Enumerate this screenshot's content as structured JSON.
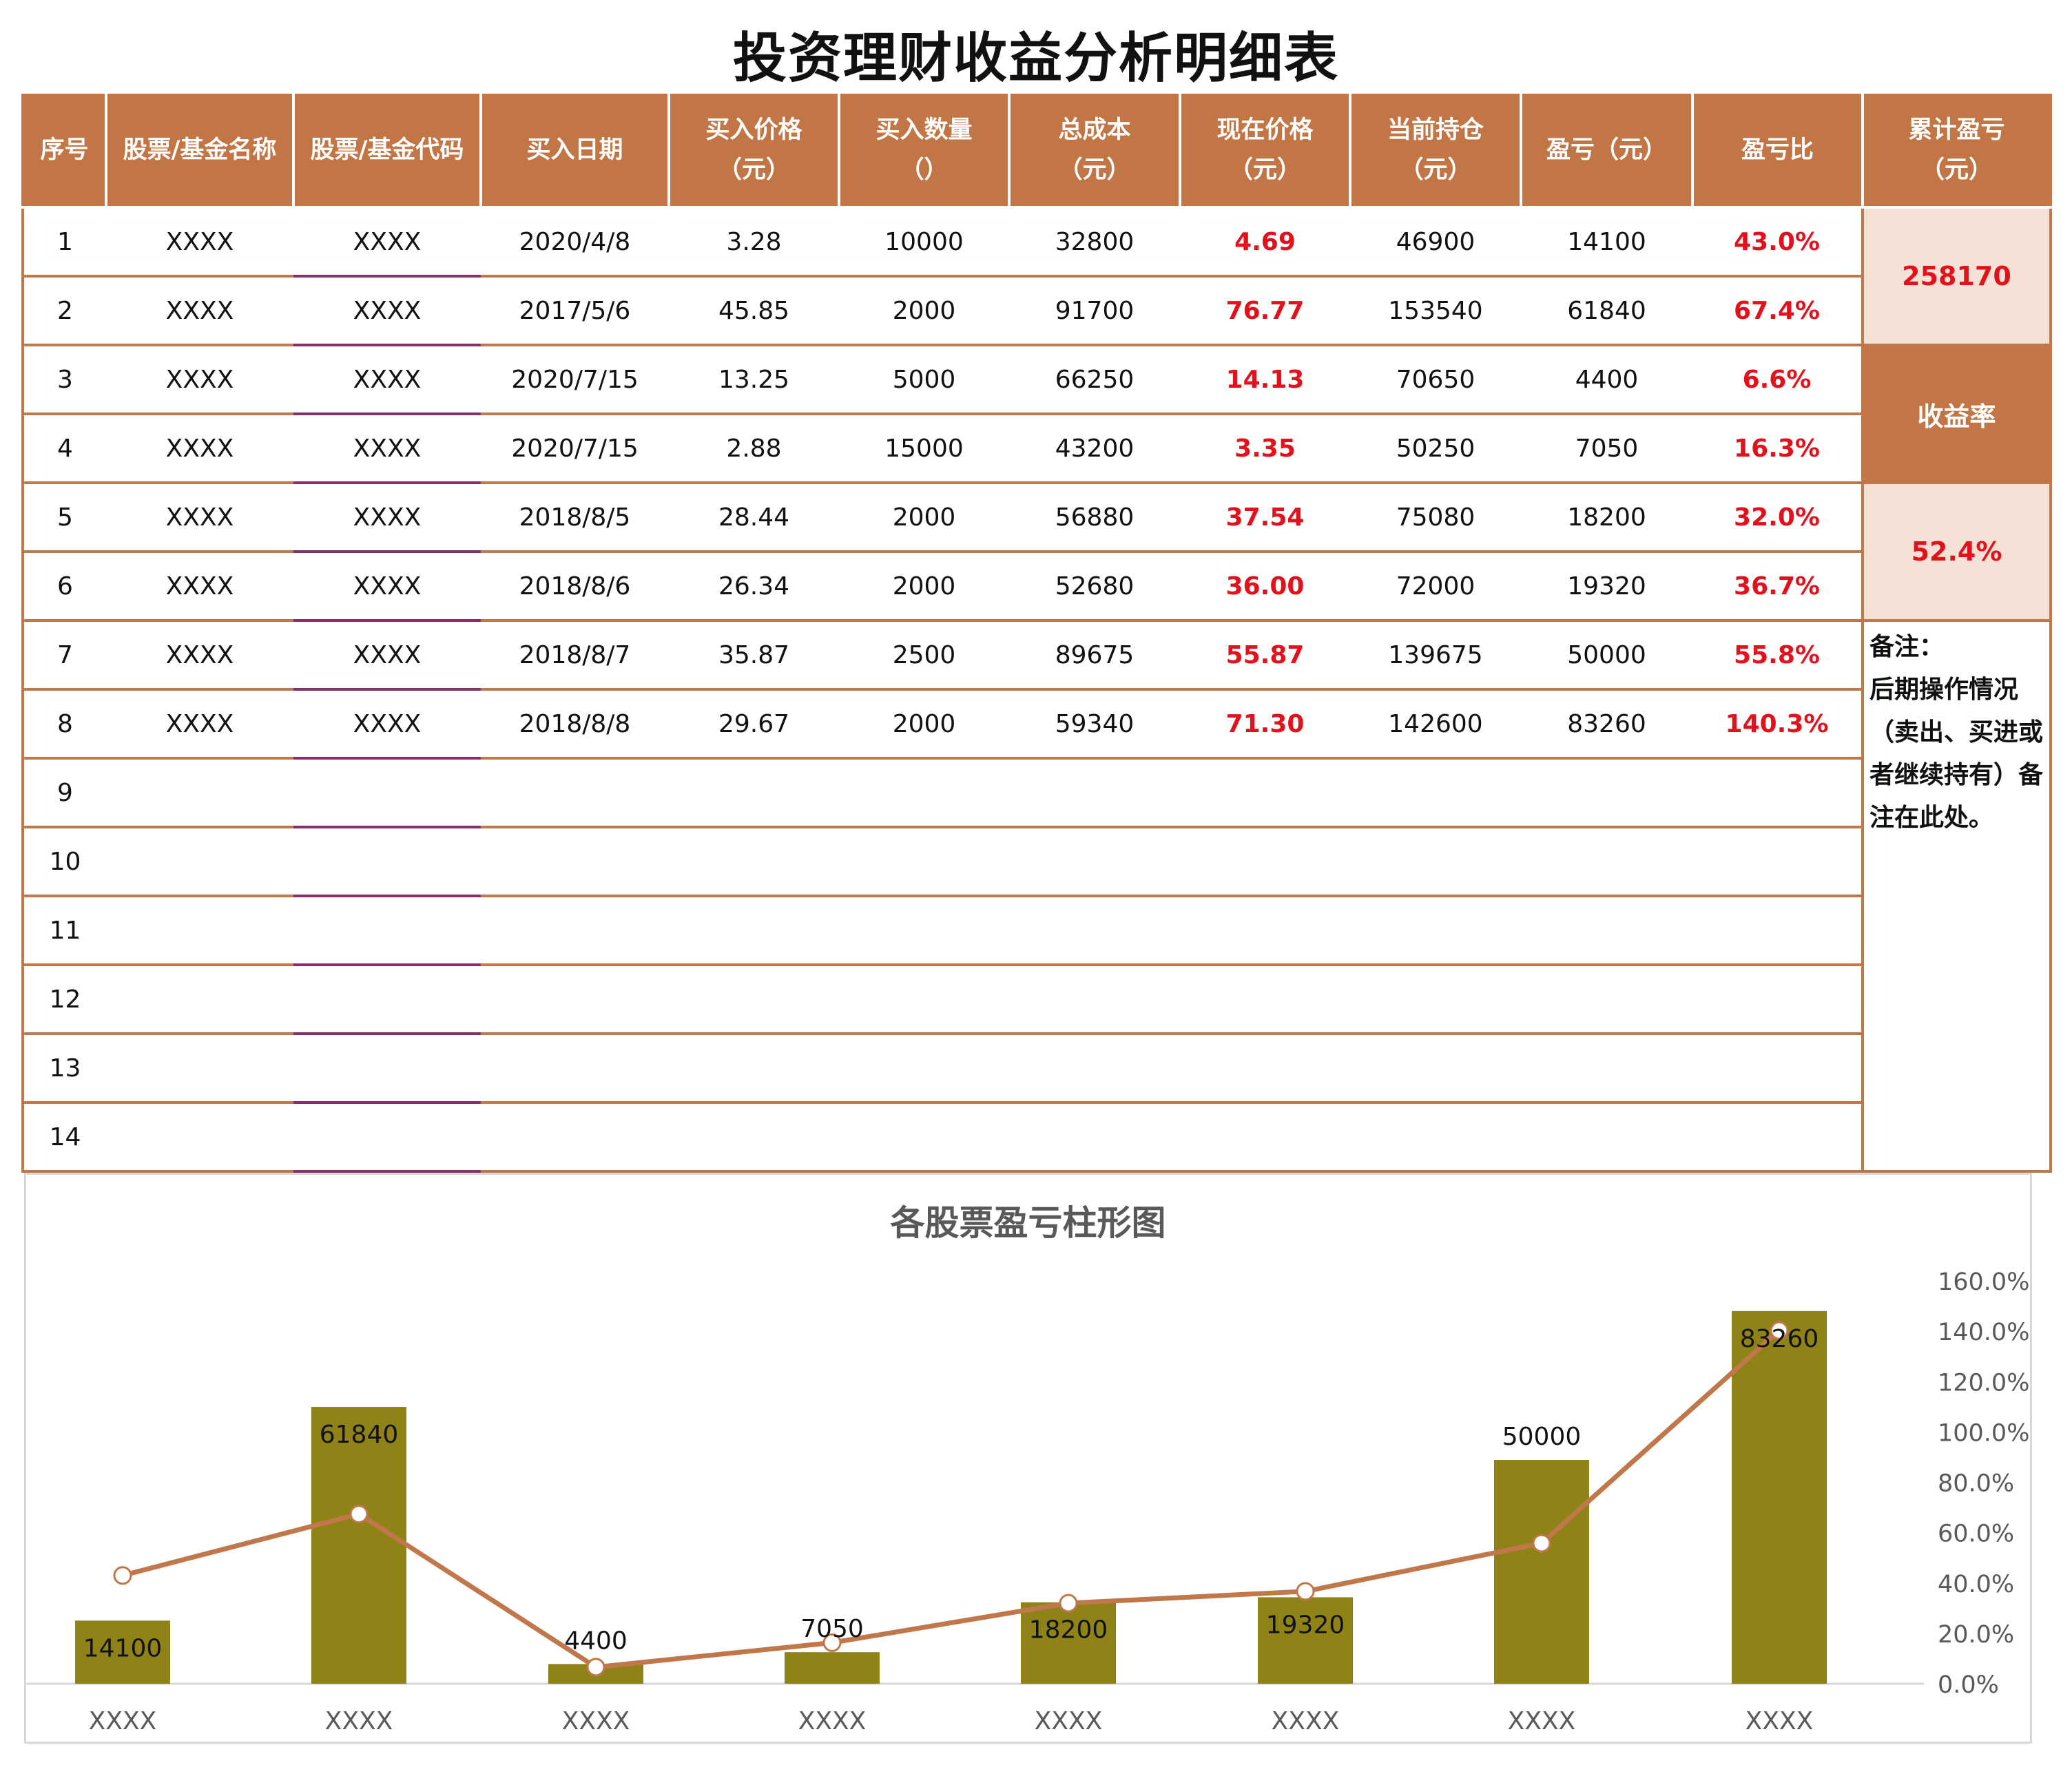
{
  "title": "投资理财收益分析明细表",
  "table": {
    "headers": [
      "序号",
      "股票/基金名称",
      "股票/基金代码",
      "买入日期",
      "买入价格\n（元）",
      "买入数量\n（）",
      "总成本\n（元）",
      "现在价格\n（元）",
      "当前持仓\n（元）",
      "盈亏（元）",
      "盈亏比",
      "累计盈亏\n（元）"
    ],
    "rows": [
      [
        "1",
        "XXXX",
        "XXXX",
        "2020/4/8",
        "3.28",
        "10000",
        "32800",
        "4.69",
        "46900",
        "14100",
        "43.0%"
      ],
      [
        "2",
        "XXXX",
        "XXXX",
        "2017/5/6",
        "45.85",
        "2000",
        "91700",
        "76.77",
        "153540",
        "61840",
        "67.4%"
      ],
      [
        "3",
        "XXXX",
        "XXXX",
        "2020/7/15",
        "13.25",
        "5000",
        "66250",
        "14.13",
        "70650",
        "4400",
        "6.6%"
      ],
      [
        "4",
        "XXXX",
        "XXXX",
        "2020/7/15",
        "2.88",
        "15000",
        "43200",
        "3.35",
        "50250",
        "7050",
        "16.3%"
      ],
      [
        "5",
        "XXXX",
        "XXXX",
        "2018/8/5",
        "28.44",
        "2000",
        "56880",
        "37.54",
        "75080",
        "18200",
        "32.0%"
      ],
      [
        "6",
        "XXXX",
        "XXXX",
        "2018/8/6",
        "26.34",
        "2000",
        "52680",
        "36.00",
        "72000",
        "19320",
        "36.7%"
      ],
      [
        "7",
        "XXXX",
        "XXXX",
        "2018/8/7",
        "35.87",
        "2500",
        "89675",
        "55.87",
        "139675",
        "50000",
        "55.8%"
      ],
      [
        "8",
        "XXXX",
        "XXXX",
        "2018/8/8",
        "29.67",
        "2000",
        "59340",
        "71.30",
        "142600",
        "83260",
        "140.3%"
      ],
      [
        "9",
        "",
        "",
        "",
        "",
        "",
        "",
        "",
        "",
        "",
        ""
      ],
      [
        "10",
        "",
        "",
        "",
        "",
        "",
        "",
        "",
        "",
        "",
        ""
      ],
      [
        "11",
        "",
        "",
        "",
        "",
        "",
        "",
        "",
        "",
        "",
        ""
      ],
      [
        "12",
        "",
        "",
        "",
        "",
        "",
        "",
        "",
        "",
        "",
        ""
      ],
      [
        "13",
        "",
        "",
        "",
        "",
        "",
        "",
        "",
        "",
        "",
        ""
      ],
      [
        "14",
        "",
        "",
        "",
        "",
        "",
        "",
        "",
        "",
        "",
        ""
      ]
    ],
    "summary": {
      "total_profit": "258170",
      "rate_label": "收益率",
      "rate_value": "52.4%",
      "note": "备注：\n后期操作情况（卖出、买进或者继续持有）备注在此处。"
    }
  },
  "colors": {
    "header": "#c27645",
    "accent_red": "#e3111b",
    "bar": "#8f8318",
    "line": "#c0784a",
    "pink": "#f6e1d7"
  },
  "chart_data": {
    "type": "bar",
    "title": "各股票盈亏柱形图",
    "categories": [
      "XXXX",
      "XXXX",
      "XXXX",
      "XXXX",
      "XXXX",
      "XXXX",
      "XXXX",
      "XXXX"
    ],
    "series": [
      {
        "name": "盈亏（元）",
        "type": "bar",
        "axis": "left",
        "values": [
          14100,
          61840,
          4400,
          7050,
          18200,
          19320,
          50000,
          83260
        ],
        "label_position": [
          "inside",
          "inside",
          "above",
          "above",
          "inside",
          "inside",
          "above",
          "inside"
        ]
      },
      {
        "name": "盈亏比",
        "type": "line",
        "axis": "right",
        "values": [
          43.0,
          67.4,
          6.6,
          16.3,
          32.0,
          36.7,
          55.8,
          140.3
        ]
      }
    ],
    "left_ylim": [
      0,
      90000
    ],
    "right_ylim": [
      0,
      160
    ],
    "right_ticks": [
      "0.0%",
      "20.0%",
      "40.0%",
      "60.0%",
      "80.0%",
      "100.0%",
      "120.0%",
      "140.0%",
      "160.0%"
    ],
    "grid": false
  }
}
